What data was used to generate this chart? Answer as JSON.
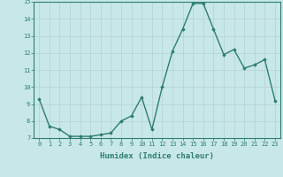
{
  "x": [
    0,
    1,
    2,
    3,
    4,
    5,
    6,
    7,
    8,
    9,
    10,
    11,
    12,
    13,
    14,
    15,
    16,
    17,
    18,
    19,
    20,
    21,
    22,
    23
  ],
  "y": [
    9.3,
    7.7,
    7.5,
    7.1,
    7.1,
    7.1,
    7.2,
    7.3,
    8.0,
    8.3,
    9.4,
    7.5,
    10.0,
    12.1,
    13.4,
    14.9,
    14.9,
    13.4,
    11.9,
    12.2,
    11.1,
    11.3,
    11.6,
    9.2
  ],
  "xlabel": "Humidex (Indice chaleur)",
  "ylim": [
    7,
    15
  ],
  "xlim_min": -0.5,
  "xlim_max": 23.5,
  "yticks": [
    7,
    8,
    9,
    10,
    11,
    12,
    13,
    14,
    15
  ],
  "xticks": [
    0,
    1,
    2,
    3,
    4,
    5,
    6,
    7,
    8,
    9,
    10,
    11,
    12,
    13,
    14,
    15,
    16,
    17,
    18,
    19,
    20,
    21,
    22,
    23
  ],
  "line_color": "#2e7d6e",
  "bg_color": "#c8e8e8",
  "grid_color": "#b8d4d4",
  "marker": "D",
  "marker_size": 1.8,
  "line_width": 1.0,
  "tick_fontsize": 5.0,
  "xlabel_fontsize": 6.5
}
